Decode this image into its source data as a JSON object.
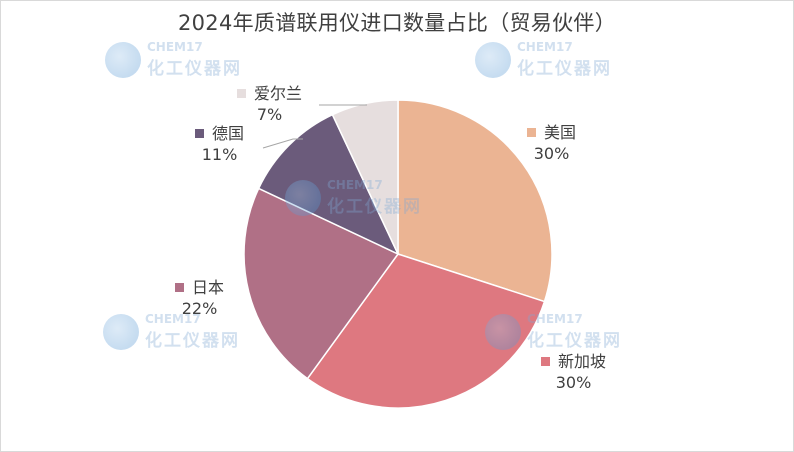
{
  "chart_data": {
    "type": "pie",
    "title": "2024年质谱联用仪进口数量占比（贸易伙伴）",
    "slices": [
      {
        "name": "美国",
        "value": 30,
        "label": "30%",
        "color": "#EBB493"
      },
      {
        "name": "新加坡",
        "value": 30,
        "label": "30%",
        "color": "#DE7880"
      },
      {
        "name": "日本",
        "value": 22,
        "label": "22%",
        "color": "#B07086"
      },
      {
        "name": "德国",
        "value": 11,
        "label": "11%",
        "color": "#6B5B7B"
      },
      {
        "name": "爱尔兰",
        "value": 7,
        "label": "7%",
        "color": "#E6DEDE"
      }
    ]
  },
  "watermark": {
    "brand": "CHEM17",
    "brand_cn": "化工仪器网"
  }
}
